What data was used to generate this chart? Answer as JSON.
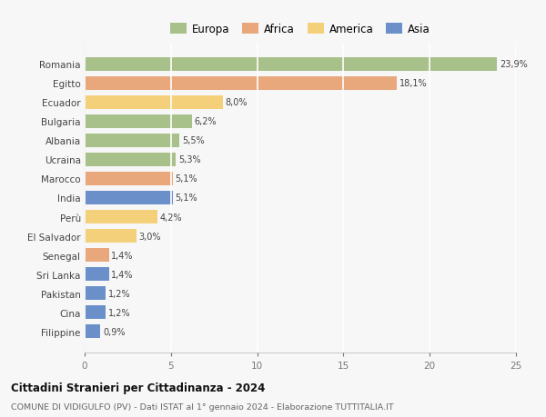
{
  "countries": [
    "Romania",
    "Egitto",
    "Ecuador",
    "Bulgaria",
    "Albania",
    "Ucraina",
    "Marocco",
    "India",
    "Perù",
    "El Salvador",
    "Senegal",
    "Sri Lanka",
    "Pakistan",
    "Cina",
    "Filippine"
  ],
  "values": [
    23.9,
    18.1,
    8.0,
    6.2,
    5.5,
    5.3,
    5.1,
    5.1,
    4.2,
    3.0,
    1.4,
    1.4,
    1.2,
    1.2,
    0.9
  ],
  "labels": [
    "23,9%",
    "18,1%",
    "8,0%",
    "6,2%",
    "5,5%",
    "5,3%",
    "5,1%",
    "5,1%",
    "4,2%",
    "3,0%",
    "1,4%",
    "1,4%",
    "1,2%",
    "1,2%",
    "0,9%"
  ],
  "continents": [
    "Europa",
    "Africa",
    "America",
    "Europa",
    "Europa",
    "Europa",
    "Africa",
    "Asia",
    "America",
    "America",
    "Africa",
    "Asia",
    "Asia",
    "Asia",
    "Asia"
  ],
  "colors": {
    "Europa": "#a8c08a",
    "Africa": "#e8a87c",
    "America": "#f5d07a",
    "Asia": "#6b8fc9"
  },
  "legend_labels": [
    "Europa",
    "Africa",
    "America",
    "Asia"
  ],
  "title": "Cittadini Stranieri per Cittadinanza - 2024",
  "subtitle": "COMUNE DI VIDIGULFO (PV) - Dati ISTAT al 1° gennaio 2024 - Elaborazione TUTTITALIA.IT",
  "xlim": [
    0,
    25
  ],
  "xticks": [
    0,
    5,
    10,
    15,
    20,
    25
  ],
  "background_color": "#f7f7f7",
  "plot_bg_color": "#f7f7f7",
  "grid_color": "#ffffff"
}
